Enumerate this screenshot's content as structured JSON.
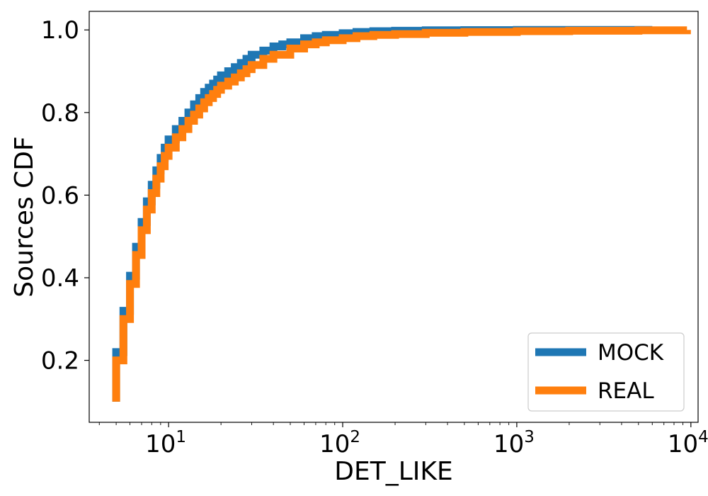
{
  "chart_data": {
    "type": "line",
    "title": "",
    "xlabel": "DET_LIKE",
    "ylabel": "Sources CDF",
    "xscale": "log",
    "xlim": [
      3.5,
      11000
    ],
    "ylim": [
      0.05,
      1.045
    ],
    "x_ticks": [
      {
        "value": 10,
        "base": "10",
        "exp": "1"
      },
      {
        "value": 100,
        "base": "10",
        "exp": "2"
      },
      {
        "value": 1000,
        "base": "10",
        "exp": "3"
      },
      {
        "value": 10000,
        "base": "10",
        "exp": "4"
      }
    ],
    "y_ticks": [
      {
        "value": 0.2,
        "label": "0.2"
      },
      {
        "value": 0.4,
        "label": "0.4"
      },
      {
        "value": 0.6,
        "label": "0.6"
      },
      {
        "value": 0.8,
        "label": "0.8"
      },
      {
        "value": 1.0,
        "label": "1.0"
      }
    ],
    "legend": {
      "placement": "lower-right"
    },
    "grid": false,
    "series": [
      {
        "name": "MOCK",
        "color": "#1f77b4",
        "x": [
          5.0,
          5.5,
          6.0,
          6.5,
          7.0,
          7.5,
          8.0,
          8.5,
          9.0,
          9.5,
          10.0,
          11.0,
          12.0,
          13.0,
          14.0,
          15.0,
          16.0,
          17.0,
          18.0,
          19.0,
          20.0,
          22.0,
          24.0,
          26.0,
          28.0,
          30.0,
          35.0,
          40.0,
          45.0,
          50.0,
          60.0,
          70.0,
          80.0,
          100.0,
          120.0,
          150.0,
          200.0,
          300.0,
          500.0,
          1000.0,
          2000.0,
          6000.0
        ],
        "y": [
          0.22,
          0.32,
          0.405,
          0.475,
          0.535,
          0.585,
          0.625,
          0.66,
          0.69,
          0.715,
          0.735,
          0.76,
          0.78,
          0.8,
          0.82,
          0.835,
          0.85,
          0.86,
          0.87,
          0.88,
          0.89,
          0.9,
          0.91,
          0.92,
          0.93,
          0.94,
          0.95,
          0.96,
          0.965,
          0.97,
          0.98,
          0.985,
          0.988,
          0.992,
          0.995,
          0.997,
          0.998,
          0.999,
          0.9995,
          0.9998,
          0.9999,
          1.0
        ]
      },
      {
        "name": "REAL",
        "color": "#ff7f0e",
        "x": [
          5.0,
          5.5,
          6.0,
          6.5,
          7.0,
          7.5,
          8.0,
          8.5,
          9.0,
          9.5,
          10.0,
          11.0,
          12.0,
          13.0,
          14.0,
          15.0,
          16.0,
          17.0,
          18.0,
          19.0,
          20.0,
          22.0,
          24.0,
          26.0,
          28.0,
          30.0,
          35.0,
          40.0,
          50.0,
          60.0,
          70.0,
          80.0,
          100.0,
          120.0,
          150.0,
          200.0,
          300.0,
          500.0,
          1000.0,
          2000.0,
          5000.0,
          9500.0
        ],
        "y": [
          0.2,
          0.3,
          0.385,
          0.455,
          0.515,
          0.565,
          0.605,
          0.64,
          0.67,
          0.695,
          0.715,
          0.74,
          0.76,
          0.78,
          0.795,
          0.81,
          0.825,
          0.835,
          0.845,
          0.855,
          0.865,
          0.875,
          0.885,
          0.895,
          0.905,
          0.915,
          0.93,
          0.94,
          0.955,
          0.965,
          0.97,
          0.975,
          0.98,
          0.985,
          0.988,
          0.99,
          0.993,
          0.995,
          0.997,
          0.998,
          0.999,
          1.0
        ]
      }
    ]
  }
}
